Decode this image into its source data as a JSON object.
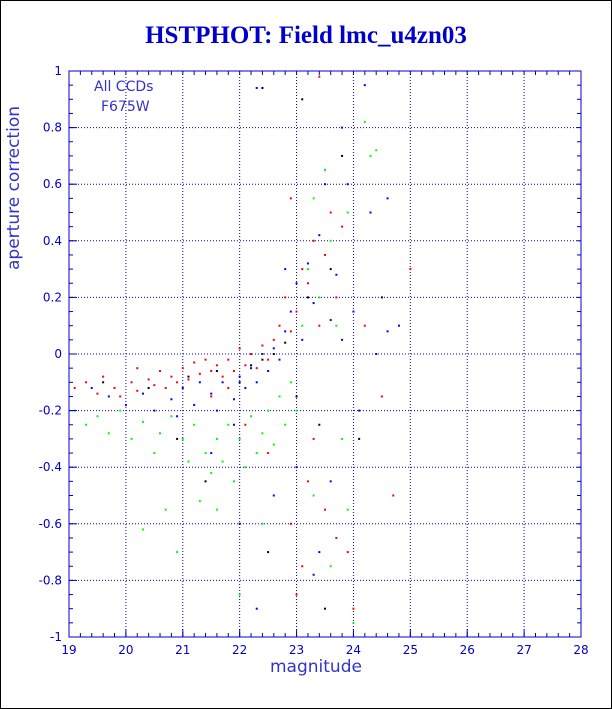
{
  "chart_data": {
    "type": "scatter",
    "title": "HSTPHOT: Field lmc_u4zn03",
    "xlabel": "magnitude",
    "ylabel": "aperture correction",
    "xlim": [
      19,
      28
    ],
    "ylim": [
      -1,
      1
    ],
    "xticks": [
      "19",
      "20",
      "21",
      "22",
      "23",
      "24",
      "25",
      "26",
      "27",
      "28"
    ],
    "yticks": [
      "-1",
      "-0.8",
      "-0.6",
      "-0.4",
      "-0.2",
      "0",
      "0.2",
      "0.4",
      "0.6",
      "0.8",
      "1"
    ],
    "grid": true,
    "annotations": [
      "All CCDs",
      "F675W"
    ],
    "series": [
      {
        "color": "#ff0000",
        "points": [
          [
            19.1,
            -0.12
          ],
          [
            19.3,
            -0.1
          ],
          [
            19.5,
            -0.14
          ],
          [
            19.6,
            -0.08
          ],
          [
            19.8,
            -0.12
          ],
          [
            19.9,
            -0.15
          ],
          [
            20.1,
            -0.1
          ],
          [
            20.2,
            -0.13
          ],
          [
            20.4,
            -0.09
          ],
          [
            20.5,
            -0.11
          ],
          [
            20.6,
            -0.06
          ],
          [
            20.7,
            -0.12
          ],
          [
            20.8,
            -0.08
          ],
          [
            20.9,
            -0.1
          ],
          [
            21.0,
            -0.05
          ],
          [
            21.1,
            -0.09
          ],
          [
            21.2,
            -0.03
          ],
          [
            21.3,
            -0.07
          ],
          [
            21.4,
            -0.02
          ],
          [
            21.5,
            -0.06
          ],
          [
            21.6,
            -0.04
          ],
          [
            21.7,
            -0.08
          ],
          [
            21.8,
            -0.02
          ],
          [
            21.9,
            -0.06
          ],
          [
            22.0,
            0.02
          ],
          [
            22.1,
            -0.04
          ],
          [
            22.2,
            0.0
          ],
          [
            22.3,
            -0.05
          ],
          [
            22.4,
            0.03
          ],
          [
            22.5,
            -0.02
          ],
          [
            22.6,
            0.05
          ],
          [
            22.7,
            0.1
          ],
          [
            22.8,
            0.2
          ],
          [
            22.9,
            0.08
          ],
          [
            23.0,
            0.15
          ],
          [
            23.1,
            0.3
          ],
          [
            23.2,
            0.25
          ],
          [
            23.3,
            0.4
          ],
          [
            23.4,
            0.1
          ],
          [
            23.5,
            0.35
          ],
          [
            23.6,
            0.5
          ],
          [
            23.7,
            0.2
          ],
          [
            23.8,
            0.45
          ],
          [
            23.3,
            -0.3
          ],
          [
            23.5,
            -0.55
          ],
          [
            23.7,
            -0.65
          ],
          [
            23.9,
            -0.7
          ],
          [
            23.2,
            -0.45
          ],
          [
            22.9,
            -0.6
          ],
          [
            23.1,
            -0.75
          ],
          [
            24.2,
            0.1
          ],
          [
            24.5,
            -0.15
          ],
          [
            24.7,
            -0.5
          ],
          [
            25.0,
            0.3
          ],
          [
            22.5,
            -0.35
          ],
          [
            21.5,
            -0.15
          ],
          [
            20.2,
            -0.05
          ],
          [
            23.0,
            -0.85
          ],
          [
            23.4,
            0.98
          ],
          [
            24.0,
            -0.9
          ],
          [
            22.1,
            -0.25
          ],
          [
            21.8,
            -0.12
          ],
          [
            22.9,
            0.55
          ]
        ]
      },
      {
        "color": "#0000ff",
        "points": [
          [
            19.4,
            -0.12
          ],
          [
            19.7,
            -0.15
          ],
          [
            20.0,
            -0.18
          ],
          [
            20.3,
            -0.14
          ],
          [
            20.5,
            -0.2
          ],
          [
            20.8,
            -0.16
          ],
          [
            21.0,
            -0.12
          ],
          [
            21.2,
            -0.18
          ],
          [
            21.3,
            -0.1
          ],
          [
            21.5,
            -0.14
          ],
          [
            21.6,
            -0.2
          ],
          [
            21.7,
            -0.1
          ],
          [
            21.9,
            -0.16
          ],
          [
            22.0,
            -0.08
          ],
          [
            22.1,
            -0.12
          ],
          [
            22.2,
            -0.05
          ],
          [
            22.3,
            -0.1
          ],
          [
            22.4,
            0.0
          ],
          [
            22.5,
            -0.06
          ],
          [
            22.6,
            0.02
          ],
          [
            22.7,
            -0.02
          ],
          [
            22.8,
            0.08
          ],
          [
            22.9,
            0.15
          ],
          [
            23.0,
            0.25
          ],
          [
            23.1,
            0.05
          ],
          [
            23.2,
            0.32
          ],
          [
            23.3,
            0.18
          ],
          [
            23.4,
            0.42
          ],
          [
            23.5,
            0.6
          ],
          [
            23.6,
            0.12
          ],
          [
            23.7,
            0.28
          ],
          [
            23.8,
            0.05
          ],
          [
            24.0,
            0.15
          ],
          [
            24.2,
            0.95
          ],
          [
            24.4,
            0.0
          ],
          [
            24.6,
            0.08
          ],
          [
            24.8,
            0.1
          ],
          [
            24.1,
            -0.2
          ],
          [
            23.6,
            -0.45
          ],
          [
            23.4,
            -0.7
          ],
          [
            22.6,
            -0.5
          ],
          [
            22.3,
            -0.9
          ],
          [
            22.0,
            -0.6
          ],
          [
            21.5,
            -0.35
          ],
          [
            22.3,
            0.94
          ],
          [
            23.0,
            -0.4
          ],
          [
            23.3,
            -0.78
          ],
          [
            24.3,
            0.5
          ],
          [
            23.8,
            0.8
          ],
          [
            22.8,
            0.3
          ],
          [
            21.9,
            -0.25
          ],
          [
            20.9,
            -0.22
          ],
          [
            23.9,
            0.6
          ],
          [
            24.6,
            0.55
          ]
        ]
      },
      {
        "color": "#00ff00",
        "points": [
          [
            19.1,
            -0.2
          ],
          [
            19.3,
            -0.25
          ],
          [
            19.5,
            -0.22
          ],
          [
            19.7,
            -0.28
          ],
          [
            19.9,
            -0.2
          ],
          [
            20.1,
            -0.3
          ],
          [
            20.3,
            -0.24
          ],
          [
            20.5,
            -0.35
          ],
          [
            20.6,
            -0.28
          ],
          [
            20.8,
            -0.22
          ],
          [
            21.0,
            -0.3
          ],
          [
            21.1,
            -0.38
          ],
          [
            21.2,
            -0.25
          ],
          [
            21.4,
            -0.35
          ],
          [
            21.5,
            -0.42
          ],
          [
            21.6,
            -0.3
          ],
          [
            21.7,
            -0.38
          ],
          [
            21.8,
            -0.25
          ],
          [
            21.9,
            -0.45
          ],
          [
            22.0,
            -0.3
          ],
          [
            22.1,
            -0.4
          ],
          [
            22.2,
            -0.22
          ],
          [
            22.3,
            -0.35
          ],
          [
            22.4,
            -0.28
          ],
          [
            22.5,
            -0.2
          ],
          [
            22.6,
            -0.32
          ],
          [
            22.7,
            -0.15
          ],
          [
            22.8,
            -0.25
          ],
          [
            22.9,
            -0.1
          ],
          [
            23.0,
            -0.2
          ],
          [
            23.1,
            0.1
          ],
          [
            23.2,
            0.3
          ],
          [
            23.3,
            0.55
          ],
          [
            23.4,
            0.2
          ],
          [
            23.5,
            0.65
          ],
          [
            23.6,
            0.4
          ],
          [
            23.7,
            0.1
          ],
          [
            23.8,
            -0.3
          ],
          [
            23.9,
            0.5
          ],
          [
            24.2,
            0.82
          ],
          [
            24.4,
            0.72
          ],
          [
            24.0,
            -0.95
          ],
          [
            23.6,
            -0.75
          ],
          [
            22.0,
            -0.85
          ],
          [
            21.6,
            -0.55
          ],
          [
            20.7,
            -0.55
          ],
          [
            20.3,
            -0.62
          ],
          [
            22.4,
            -0.6
          ],
          [
            23.3,
            -0.5
          ],
          [
            23.9,
            -0.55
          ],
          [
            24.3,
            0.7
          ],
          [
            20.9,
            -0.7
          ],
          [
            21.3,
            -0.52
          ]
        ]
      },
      {
        "color": "#000000",
        "points": [
          [
            19.6,
            -0.1
          ],
          [
            20.4,
            -0.12
          ],
          [
            21.1,
            -0.08
          ],
          [
            21.6,
            -0.06
          ],
          [
            22.0,
            -0.1
          ],
          [
            22.2,
            -0.04
          ],
          [
            22.4,
            -0.02
          ],
          [
            22.6,
            0.0
          ],
          [
            22.8,
            0.04
          ],
          [
            23.0,
            -0.15
          ],
          [
            23.2,
            0.2
          ],
          [
            23.4,
            -0.25
          ],
          [
            23.6,
            0.3
          ],
          [
            22.4,
            0.94
          ],
          [
            23.1,
            0.9
          ],
          [
            22.5,
            -0.7
          ],
          [
            21.4,
            -0.45
          ],
          [
            20.9,
            -0.3
          ],
          [
            23.5,
            -0.9
          ],
          [
            24.1,
            -0.3
          ],
          [
            23.8,
            0.7
          ],
          [
            24.5,
            0.2
          ]
        ]
      }
    ]
  }
}
